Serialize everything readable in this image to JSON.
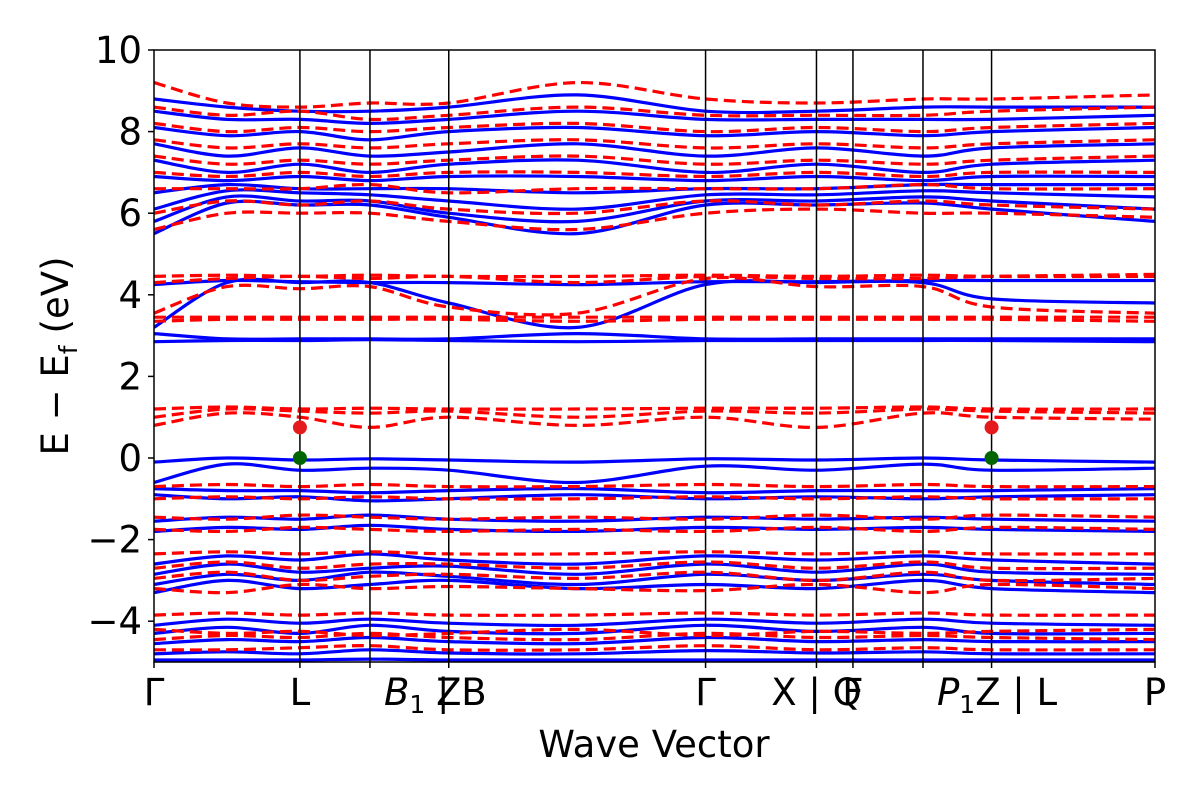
{
  "chart_data": {
    "type": "line",
    "xlabel": "Wave Vector",
    "ylabel_main": "E − E",
    "ylabel_sub": "f",
    "ylabel_unit": "(eV)",
    "ylim": [
      -5,
      10
    ],
    "yticks": [
      -4,
      -2,
      0,
      2,
      4,
      6,
      8,
      10
    ],
    "ytick_labels": [
      "−4",
      "−2",
      "0",
      "2",
      "4",
      "6",
      "8",
      "10"
    ],
    "xlim": [
      0,
      6.86
    ],
    "kpoints": [
      {
        "x": 0.0,
        "label": "Γ"
      },
      {
        "x": 1.0,
        "label": "L"
      },
      {
        "x": 1.48,
        "label": "B",
        "sub": "1",
        "italic": true,
        "suffix": " | B"
      },
      {
        "x": 2.02,
        "label": "Z"
      },
      {
        "x": 3.78,
        "label": "Γ"
      },
      {
        "x": 4.54,
        "label": "X | Q"
      },
      {
        "x": 4.79,
        "label": "F"
      },
      {
        "x": 5.27,
        "label": "P",
        "sub": "1",
        "italic": true,
        "suffix": "Z | L"
      },
      {
        "x": 5.74,
        "label": ""
      },
      {
        "x": 6.86,
        "label": "P"
      }
    ],
    "series": [
      {
        "style": "solid",
        "color": "#0000ff",
        "bands": [
          [
            -4.95,
            -4.95,
            -4.95,
            -4.93,
            -4.95,
            -4.95,
            -4.95,
            -4.95,
            -4.95,
            -4.95,
            -4.95
          ],
          [
            -4.8,
            -4.75,
            -4.8,
            -4.7,
            -4.78,
            -4.8,
            -4.72,
            -4.78,
            -4.75,
            -4.8,
            -4.8
          ],
          [
            -4.55,
            -4.45,
            -4.5,
            -4.4,
            -4.5,
            -4.55,
            -4.4,
            -4.5,
            -4.45,
            -4.5,
            -4.5
          ],
          [
            -4.3,
            -4.15,
            -4.3,
            -4.1,
            -4.25,
            -4.3,
            -4.1,
            -4.25,
            -4.15,
            -4.3,
            -4.3
          ],
          [
            -4.1,
            -3.95,
            -4.05,
            -3.95,
            -4.05,
            -4.1,
            -3.95,
            -4.05,
            -3.95,
            -4.05,
            -4.1
          ],
          [
            -3.3,
            -3.0,
            -3.2,
            -3.1,
            -3.0,
            -3.2,
            -3.1,
            -3.2,
            -3.0,
            -3.2,
            -3.3
          ],
          [
            -3.1,
            -2.85,
            -3.0,
            -2.8,
            -2.9,
            -3.1,
            -2.85,
            -3.0,
            -2.85,
            -3.0,
            -3.1
          ],
          [
            -2.85,
            -2.6,
            -2.8,
            -2.7,
            -2.65,
            -2.85,
            -2.6,
            -2.8,
            -2.6,
            -2.8,
            -2.85
          ],
          [
            -2.6,
            -2.4,
            -2.5,
            -2.35,
            -2.5,
            -2.6,
            -2.4,
            -2.5,
            -2.4,
            -2.5,
            -2.6
          ],
          [
            -1.8,
            -1.7,
            -1.75,
            -1.65,
            -1.75,
            -1.8,
            -1.7,
            -1.75,
            -1.7,
            -1.75,
            -1.8
          ],
          [
            -1.55,
            -1.45,
            -1.5,
            -1.4,
            -1.5,
            -1.55,
            -1.45,
            -1.5,
            -1.45,
            -1.5,
            -1.55
          ],
          [
            -0.9,
            -1.0,
            -0.95,
            -1.05,
            -1.0,
            -0.9,
            -1.0,
            -0.95,
            -1.0,
            -0.95,
            -0.9
          ],
          [
            -0.75,
            -0.8,
            -0.8,
            -0.85,
            -0.8,
            -0.75,
            -0.85,
            -0.8,
            -0.8,
            -0.8,
            -0.75
          ],
          [
            -0.6,
            -0.15,
            -0.3,
            -0.25,
            -0.3,
            -0.6,
            -0.2,
            -0.3,
            -0.15,
            -0.3,
            -0.25
          ],
          [
            -0.1,
            0.0,
            -0.05,
            -0.02,
            -0.05,
            -0.1,
            -0.02,
            -0.05,
            0.0,
            -0.05,
            -0.1
          ],
          [
            2.85,
            2.88,
            2.88,
            2.9,
            2.88,
            2.85,
            2.88,
            2.88,
            2.88,
            2.88,
            2.85
          ],
          [
            3.05,
            2.92,
            2.92,
            2.92,
            2.92,
            3.05,
            2.92,
            2.92,
            2.92,
            2.92,
            2.92
          ],
          [
            3.2,
            4.3,
            4.3,
            4.3,
            3.8,
            3.2,
            4.25,
            4.3,
            4.3,
            3.9,
            3.8
          ],
          [
            4.25,
            4.35,
            4.32,
            4.3,
            4.3,
            4.25,
            4.32,
            4.32,
            4.35,
            4.35,
            4.35
          ],
          [
            5.5,
            6.25,
            6.2,
            6.2,
            5.9,
            5.5,
            6.2,
            6.2,
            6.25,
            6.1,
            5.8
          ],
          [
            5.8,
            6.4,
            6.3,
            6.3,
            6.0,
            5.8,
            6.3,
            6.3,
            6.4,
            6.3,
            6.1
          ],
          [
            6.1,
            6.55,
            6.5,
            6.45,
            6.3,
            6.1,
            6.45,
            6.45,
            6.55,
            6.5,
            6.4
          ],
          [
            6.5,
            6.7,
            6.6,
            6.6,
            6.6,
            6.5,
            6.6,
            6.6,
            6.7,
            6.7,
            6.7
          ],
          [
            6.9,
            6.8,
            6.9,
            6.8,
            6.9,
            6.9,
            6.8,
            6.9,
            6.8,
            6.9,
            6.9
          ],
          [
            7.3,
            7.0,
            7.2,
            7.0,
            7.2,
            7.3,
            7.0,
            7.2,
            7.0,
            7.2,
            7.3
          ],
          [
            7.7,
            7.4,
            7.6,
            7.4,
            7.5,
            7.7,
            7.4,
            7.6,
            7.4,
            7.6,
            7.7
          ],
          [
            8.1,
            7.9,
            8.0,
            7.8,
            8.0,
            8.1,
            7.9,
            8.0,
            7.9,
            8.0,
            8.1
          ],
          [
            8.5,
            8.3,
            8.3,
            8.2,
            8.3,
            8.5,
            8.3,
            8.3,
            8.3,
            8.3,
            8.4
          ],
          [
            8.8,
            8.6,
            8.5,
            8.5,
            8.6,
            8.9,
            8.5,
            8.5,
            8.6,
            8.6,
            8.6
          ]
        ]
      },
      {
        "style": "dashed",
        "color": "#ff0000",
        "bands": [
          [
            -4.7,
            -4.7,
            -4.65,
            -4.6,
            -4.7,
            -4.7,
            -4.6,
            -4.7,
            -4.65,
            -4.7,
            -4.7
          ],
          [
            -4.45,
            -4.35,
            -4.4,
            -4.3,
            -4.4,
            -4.45,
            -4.3,
            -4.4,
            -4.35,
            -4.4,
            -4.45
          ],
          [
            -4.2,
            -4.3,
            -4.25,
            -4.35,
            -4.3,
            -4.2,
            -4.35,
            -4.25,
            -4.3,
            -4.25,
            -4.2
          ],
          [
            -3.85,
            -3.8,
            -3.85,
            -3.8,
            -3.85,
            -3.85,
            -3.8,
            -3.85,
            -3.8,
            -3.85,
            -3.85
          ],
          [
            -3.2,
            -3.3,
            -3.1,
            -3.2,
            -3.15,
            -3.2,
            -3.25,
            -3.1,
            -3.3,
            -3.1,
            -3.2
          ],
          [
            -2.95,
            -2.8,
            -3.0,
            -2.9,
            -2.85,
            -2.95,
            -2.8,
            -3.0,
            -2.8,
            -3.0,
            -2.95
          ],
          [
            -2.7,
            -2.55,
            -2.7,
            -2.6,
            -2.6,
            -2.7,
            -2.55,
            -2.7,
            -2.55,
            -2.7,
            -2.7
          ],
          [
            -2.35,
            -2.3,
            -2.35,
            -2.3,
            -2.35,
            -2.35,
            -2.3,
            -2.35,
            -2.3,
            -2.35,
            -2.35
          ],
          [
            -1.75,
            -1.8,
            -1.7,
            -1.75,
            -1.8,
            -1.75,
            -1.8,
            -1.7,
            -1.8,
            -1.7,
            -1.75
          ],
          [
            -1.45,
            -1.5,
            -1.4,
            -1.45,
            -1.5,
            -1.45,
            -1.5,
            -1.4,
            -1.5,
            -1.4,
            -1.45
          ],
          [
            -1.0,
            -0.95,
            -1.0,
            -0.95,
            -1.0,
            -1.0,
            -0.95,
            -1.0,
            -0.95,
            -1.0,
            -1.0
          ],
          [
            -0.7,
            -0.65,
            -0.7,
            -0.65,
            -0.7,
            -0.7,
            -0.65,
            -0.7,
            -0.65,
            -0.7,
            -0.7
          ],
          [
            0.8,
            1.1,
            1.0,
            0.75,
            1.0,
            0.8,
            1.0,
            0.75,
            1.1,
            1.0,
            0.95
          ],
          [
            1.0,
            1.2,
            1.15,
            1.1,
            1.15,
            1.0,
            1.15,
            1.1,
            1.2,
            1.15,
            1.1
          ],
          [
            1.2,
            1.25,
            1.2,
            1.22,
            1.2,
            1.2,
            1.22,
            1.22,
            1.25,
            1.2,
            1.2
          ],
          [
            3.35,
            3.4,
            3.4,
            3.4,
            3.4,
            3.35,
            3.4,
            3.4,
            3.4,
            3.4,
            3.35
          ],
          [
            3.45,
            3.45,
            3.45,
            3.45,
            3.45,
            3.45,
            3.45,
            3.45,
            3.45,
            3.45,
            3.45
          ],
          [
            3.55,
            4.2,
            4.15,
            4.2,
            3.7,
            3.55,
            4.4,
            4.2,
            4.2,
            3.7,
            3.55
          ],
          [
            4.3,
            4.4,
            4.45,
            4.4,
            4.45,
            4.3,
            4.45,
            4.4,
            4.4,
            4.45,
            4.5
          ],
          [
            4.45,
            4.48,
            4.45,
            4.48,
            4.45,
            4.45,
            4.48,
            4.45,
            4.48,
            4.45,
            4.45
          ],
          [
            5.6,
            6.0,
            6.0,
            6.0,
            5.8,
            5.6,
            6.0,
            6.1,
            6.0,
            6.0,
            5.9
          ],
          [
            6.0,
            6.3,
            6.2,
            6.3,
            6.1,
            6.0,
            6.3,
            6.2,
            6.3,
            6.2,
            6.1
          ],
          [
            6.6,
            6.6,
            6.6,
            6.7,
            6.5,
            6.6,
            6.6,
            6.6,
            6.7,
            6.6,
            6.6
          ],
          [
            7.0,
            6.9,
            7.0,
            6.9,
            7.0,
            7.0,
            6.9,
            7.0,
            6.9,
            7.0,
            7.0
          ],
          [
            7.4,
            7.2,
            7.3,
            7.2,
            7.3,
            7.4,
            7.2,
            7.3,
            7.2,
            7.3,
            7.4
          ],
          [
            7.8,
            7.6,
            7.7,
            7.6,
            7.7,
            7.8,
            7.6,
            7.7,
            7.6,
            7.7,
            7.8
          ],
          [
            8.2,
            8.0,
            8.1,
            8.0,
            8.1,
            8.2,
            8.0,
            8.1,
            8.0,
            8.1,
            8.2
          ],
          [
            8.6,
            8.4,
            8.5,
            8.3,
            8.4,
            8.6,
            8.4,
            8.4,
            8.4,
            8.5,
            8.6
          ],
          [
            9.2,
            8.7,
            8.6,
            8.7,
            8.7,
            9.2,
            8.8,
            8.7,
            8.8,
            8.8,
            8.9
          ]
        ]
      }
    ],
    "band_x": [
      0.0,
      0.5,
      1.0,
      1.48,
      2.02,
      2.9,
      3.78,
      4.54,
      5.27,
      5.74,
      6.86
    ],
    "markers": [
      {
        "x": 1.0,
        "y": 0.75,
        "color": "#e41a1c"
      },
      {
        "x": 1.0,
        "y": 0.0,
        "color": "#006400"
      },
      {
        "x": 5.74,
        "y": 0.75,
        "color": "#e41a1c"
      },
      {
        "x": 5.74,
        "y": 0.0,
        "color": "#006400"
      }
    ]
  }
}
